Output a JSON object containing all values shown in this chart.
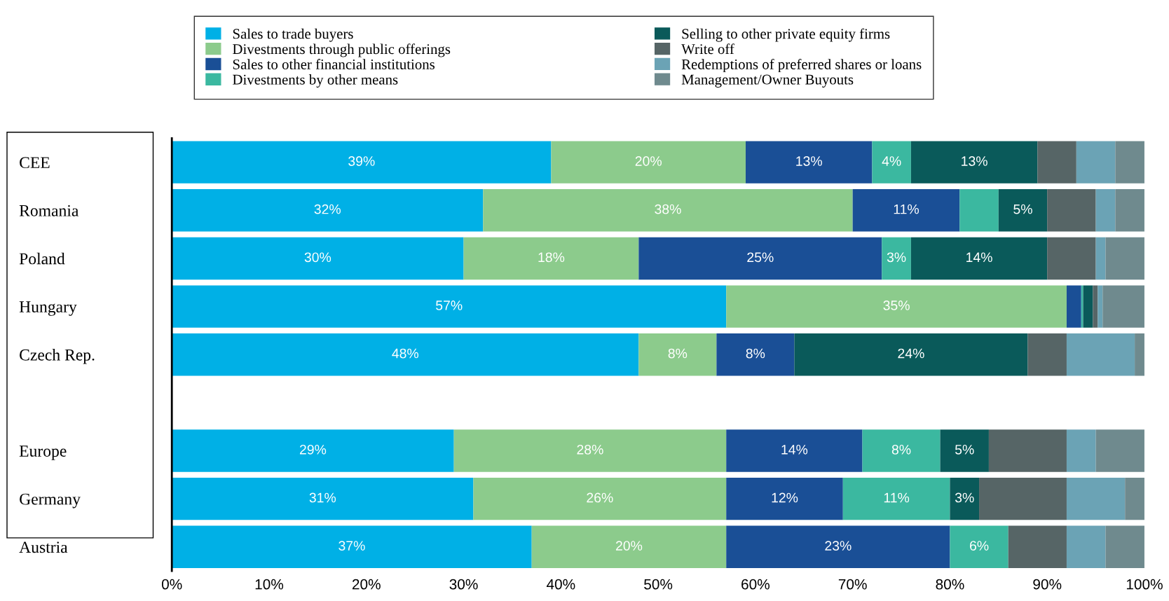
{
  "chart_data": {
    "type": "bar",
    "orientation": "horizontal",
    "stacked": true,
    "legend": "top",
    "categories": [
      "CEE",
      "Romania",
      "Poland",
      "Hungary",
      "Czech Rep.",
      null,
      "Europe",
      "Germany",
      "Austria"
    ],
    "xlim": [
      0,
      100
    ],
    "xticks": [
      {
        "value": 0,
        "label": "0%"
      },
      {
        "value": 10,
        "label": "10%"
      },
      {
        "value": 20,
        "label": "20%"
      },
      {
        "value": 30,
        "label": "30%"
      },
      {
        "value": 40,
        "label": "40%"
      },
      {
        "value": 50,
        "label": "50%"
      },
      {
        "value": 60,
        "label": "60%"
      },
      {
        "value": 70,
        "label": "70%"
      },
      {
        "value": 80,
        "label": "80%"
      },
      {
        "value": 90,
        "label": "90%"
      },
      {
        "value": 100,
        "label": "100%"
      }
    ],
    "series": [
      {
        "name": "Sales to trade buyers",
        "color": "#00b0e6",
        "values": [
          39,
          32,
          30,
          57,
          48,
          null,
          29,
          31,
          37
        ],
        "value_labels": [
          "39%",
          "32%",
          "30%",
          "57%",
          "48%",
          null,
          "29%",
          "31%",
          "37%"
        ]
      },
      {
        "name": "Divestments through public offerings",
        "color": "#8ccb8c",
        "values": [
          20,
          38,
          18,
          35,
          8,
          null,
          28,
          26,
          20
        ],
        "value_labels": [
          "20%",
          "38%",
          "18%",
          "35%",
          "8%",
          null,
          "28%",
          "26%",
          "20%"
        ]
      },
      {
        "name": "Sales to other financial institutions",
        "color": "#1a4f96",
        "values": [
          13,
          11,
          25,
          1.5,
          8,
          null,
          14,
          12,
          23
        ],
        "value_labels": [
          "13%",
          "11%",
          "25%",
          null,
          "8%",
          null,
          "14%",
          "12%",
          "23%"
        ]
      },
      {
        "name": "Divestments by other means",
        "color": "#3bb8a0",
        "values": [
          4,
          4,
          3,
          0.2,
          0,
          null,
          8,
          11,
          6
        ],
        "value_labels": [
          "4%",
          null,
          "3%",
          null,
          null,
          null,
          "8%",
          "11%",
          "6%"
        ]
      },
      {
        "name": "Selling to other private equity firms",
        "color": "#0a5a5a",
        "values": [
          13,
          5,
          14,
          1,
          24,
          null,
          5,
          3,
          0
        ],
        "value_labels": [
          "13%",
          "5%",
          "14%",
          null,
          "24%",
          null,
          "5%",
          "3%",
          null
        ]
      },
      {
        "name": "Write off",
        "color": "#566566",
        "values": [
          4,
          5,
          5,
          0.5,
          4,
          null,
          8,
          9,
          6
        ]
      },
      {
        "name": "Redemptions of preferred shares or loans",
        "color": "#6ba3b5",
        "values": [
          4,
          2,
          1,
          0.5,
          7,
          null,
          3,
          6,
          4
        ]
      },
      {
        "name": "Management/Owner Buyouts",
        "color": "#6f8a8e",
        "values": [
          3,
          3,
          4,
          4.3,
          1,
          null,
          5,
          2,
          4
        ]
      }
    ]
  }
}
